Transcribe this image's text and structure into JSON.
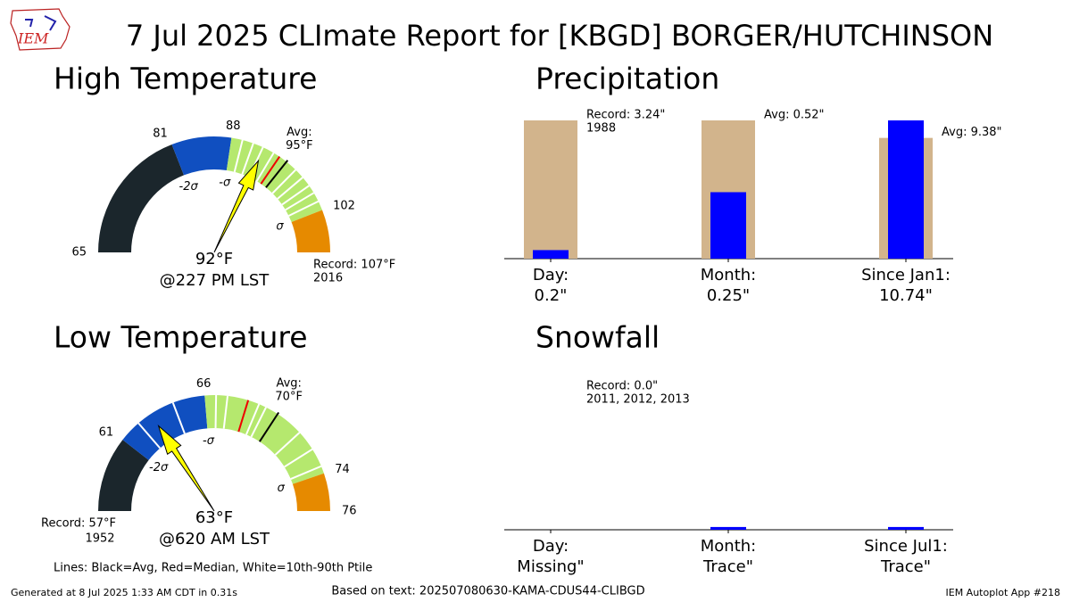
{
  "title": "7 Jul 2025 CLImate Report for [KBGD] BORGER/HUTCHINSON",
  "logo_text": "IEM",
  "chart_data": [
    {
      "type": "gauge",
      "title": "High Temperature",
      "range": [
        65,
        107
      ],
      "ticks": [
        65,
        81,
        88,
        102
      ],
      "band_colors": [
        "#1b262c",
        "#104fc0",
        "#b5e86e",
        "#e68a00"
      ],
      "sigma_labels": [
        {
          "value": 81,
          "label": "-2σ"
        },
        {
          "value": 88,
          "label": "-σ"
        },
        {
          "value": 102,
          "label": "σ"
        }
      ],
      "percentiles": [
        89.3,
        90.6,
        91.8,
        93.2,
        96.4,
        97.6,
        98.8,
        99.8,
        100.9
      ],
      "median": 94,
      "avg": 95,
      "avg_title": "Avg:",
      "avg_label": "95°F",
      "value": 92,
      "value_label": "92°F",
      "time_label": "@227 PM LST",
      "record_label": "Record: 107°F",
      "record_year": "2016",
      "record_side": "right"
    },
    {
      "type": "gauge",
      "title": "Low Temperature",
      "range": [
        57,
        76
      ],
      "ticks": [
        61,
        66,
        74,
        76
      ],
      "band_colors": [
        "#1b262c",
        "#104fc0",
        "#b5e86e",
        "#e68a00"
      ],
      "sigma_labels": [
        {
          "value": 61,
          "label": "-2σ"
        },
        {
          "value": 66,
          "label": "-σ"
        },
        {
          "value": 74,
          "label": "σ"
        }
      ],
      "percentiles": [
        62.2,
        64.3,
        66.6,
        67.2,
        68.9,
        69.3,
        71.5,
        72.6,
        73.6
      ],
      "median": 68.3,
      "avg": 70,
      "avg_title": "Avg:",
      "avg_label": "70°F",
      "value": 63,
      "value_label": "63°F",
      "time_label": "@620 AM LST",
      "record_label": "Record: 57°F",
      "record_year": "1952",
      "record_side": "left"
    },
    {
      "type": "bar",
      "title": "Precipitation",
      "normalize": true,
      "categories": [
        "Day:",
        "Month:",
        "Since Jan1:"
      ],
      "series": [
        {
          "color": "#d2b48c",
          "values": [
            3.24,
            0.52,
            9.38
          ]
        },
        {
          "color": "#0000ff",
          "values": [
            0.2,
            0.25,
            10.74
          ],
          "value_labels": [
            "0.2\"",
            "0.25\"",
            "10.74\""
          ]
        }
      ],
      "annotations": [
        [
          "Record: 3.24\"",
          "1988"
        ],
        [
          "Avg: 0.52\""
        ],
        [
          "Avg: 9.38\""
        ]
      ]
    },
    {
      "type": "bar",
      "title": "Snowfall",
      "normalize": false,
      "ylim": [
        0,
        0.005
      ],
      "categories": [
        "Day:",
        "Month:",
        "Since Jul1:"
      ],
      "series": [
        {
          "color": "#d2b48c",
          "values": [
            0.0,
            null,
            null
          ]
        },
        {
          "color": "#0000ff",
          "values": [
            null,
            0.0001,
            0.0001
          ],
          "value_labels": [
            "Missing\"",
            "Trace\"",
            "Trace\""
          ]
        }
      ],
      "annotations": [
        [
          "Record: 0.0\"",
          "2011, 2012, 2013"
        ],
        null,
        null
      ]
    }
  ],
  "legend_note": "Lines: Black=Avg, Red=Median, White=10th-90th Ptile",
  "footer": {
    "generated": "Generated at 8 Jul 2025 1:33 AM CDT in 0.31s",
    "source": "Based on text: 202507080630-KAMA-CDUS44-CLIBGD",
    "app": "IEM Autoplot App #218"
  }
}
